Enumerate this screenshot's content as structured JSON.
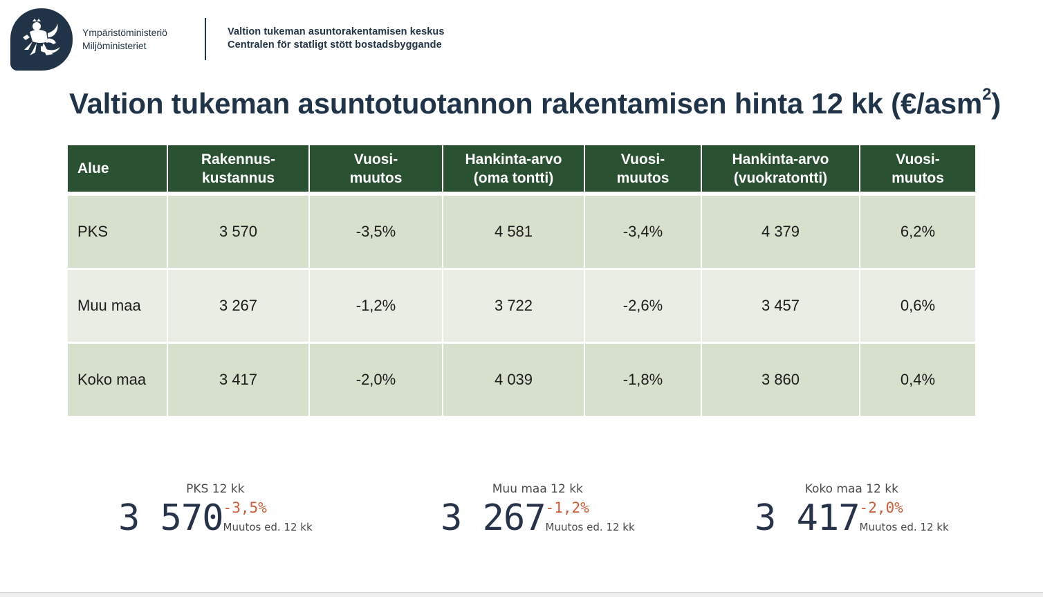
{
  "header": {
    "ministry_fi": "Ympäristöministeriö",
    "ministry_sv": "Miljöministeriet",
    "agency_fi": "Valtion tukeman asuntorakentamisen keskus",
    "agency_sv": "Centralen för statligt stött bostadsbyggande"
  },
  "title": {
    "text": "Valtion tukeman asuntotuotannon rakentamisen hinta 12 kk (€/asm",
    "sup": "2",
    "close": ")"
  },
  "table": {
    "headers": [
      {
        "line1": "Alue",
        "line2": ""
      },
      {
        "line1": "Rakennus-",
        "line2": "kustannus"
      },
      {
        "line1": "Vuosi-",
        "line2": "muutos"
      },
      {
        "line1": "Hankinta-arvo",
        "line2": "(oma tontti)"
      },
      {
        "line1": "Vuosi-",
        "line2": "muutos"
      },
      {
        "line1": "Hankinta-arvo",
        "line2": "(vuokratontti)"
      },
      {
        "line1": "Vuosi-",
        "line2": "muutos"
      }
    ],
    "rows": [
      [
        "PKS",
        "3 570",
        "-3,5%",
        "4 581",
        "-3,4%",
        "4 379",
        "6,2%"
      ],
      [
        "Muu maa",
        "3 267",
        "-1,2%",
        "3 722",
        "-2,6%",
        "3 457",
        "0,6%"
      ],
      [
        "Koko maa",
        "3 417",
        "-2,0%",
        "4 039",
        "-1,8%",
        "3 860",
        "0,4%"
      ]
    ]
  },
  "kpis": [
    {
      "label": "PKS 12 kk",
      "value": "3 570",
      "delta": "-3,5%",
      "note": "Muutos ed. 12 kk"
    },
    {
      "label": "Muu maa 12 kk",
      "value": "3 267",
      "delta": "-1,2%",
      "note": "Muutos ed. 12 kk"
    },
    {
      "label": "Koko maa 12 kk",
      "value": "3 417",
      "delta": "-2,0%",
      "note": "Muutos ed. 12 kk"
    }
  ],
  "colors": {
    "navy": "#213447",
    "header_green": "#2b5133",
    "row_green": "#d7e0cc",
    "row_light": "#e9ede4",
    "delta_orange": "#d05a34"
  }
}
